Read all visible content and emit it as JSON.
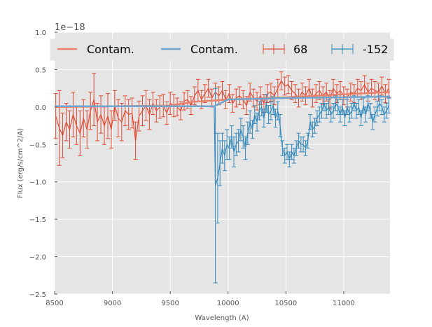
{
  "chart_data": {
    "type": "line",
    "title": "",
    "xlabel": "Wavelength (A)",
    "ylabel": "Flux (erg/s/cm^2/A)",
    "y_offset_label": "1e−18",
    "xlim": [
      8500,
      11400
    ],
    "ylim": [
      -2.5,
      1.0
    ],
    "xticks": [
      8500,
      9000,
      9500,
      10000,
      10500,
      11000
    ],
    "xtick_labels": [
      "8500",
      "9000",
      "9500",
      "10000",
      "10500",
      "11000"
    ],
    "yticks": [
      -2.5,
      -2.0,
      -1.5,
      -1.0,
      -0.5,
      0.0,
      0.5,
      1.0
    ],
    "ytick_labels": [
      "−2.5",
      "−2.0",
      "−1.5",
      "−1.0",
      "−0.5",
      "0.0",
      "0.5",
      "1.0"
    ],
    "grid": true,
    "legend_position": "top",
    "legend_ncol": 4,
    "series": [
      {
        "name": "Contam.",
        "kind": "line",
        "color": "#E8806A",
        "x": [
          8500,
          9000,
          9500,
          9700,
          10000,
          10500,
          11000,
          11400
        ],
        "y": [
          0.0,
          0.01,
          0.02,
          0.07,
          0.1,
          0.13,
          0.17,
          0.2
        ]
      },
      {
        "name": "Contam.",
        "kind": "line",
        "color": "#6FA6CF",
        "x": [
          8500,
          9000,
          9500,
          9880,
          10000,
          10500,
          11000,
          11400
        ],
        "y": [
          0.01,
          0.01,
          0.01,
          0.01,
          0.1,
          0.12,
          0.13,
          0.14
        ]
      },
      {
        "name": "68",
        "kind": "errorbar",
        "color": "#E24A33",
        "x": [
          8510,
          8540,
          8570,
          8600,
          8630,
          8660,
          8690,
          8720,
          8750,
          8780,
          8810,
          8840,
          8870,
          8900,
          8930,
          8960,
          8990,
          9020,
          9050,
          9080,
          9110,
          9140,
          9170,
          9200,
          9230,
          9260,
          9290,
          9320,
          9350,
          9380,
          9410,
          9440,
          9470,
          9500,
          9530,
          9560,
          9590,
          9620,
          9650,
          9680,
          9710,
          9740,
          9770,
          9800,
          9830,
          9860,
          9890,
          9920,
          9950,
          9980,
          10010,
          10040,
          10070,
          10100,
          10130,
          10160,
          10190,
          10220,
          10250,
          10280,
          10310,
          10340,
          10370,
          10400,
          10430,
          10460,
          10490,
          10520,
          10550,
          10580,
          10610,
          10640,
          10670,
          10700,
          10730,
          10760,
          10790,
          10820,
          10850,
          10880,
          10910,
          10940,
          10970,
          11000,
          11030,
          11060,
          11090,
          11120,
          11150,
          11180,
          11210,
          11240,
          11270,
          11300,
          11330,
          11360,
          11390
        ],
        "y": [
          -0.12,
          -0.28,
          -0.38,
          -0.2,
          -0.3,
          -0.1,
          -0.25,
          -0.35,
          -0.15,
          -0.3,
          -0.05,
          0.1,
          -0.2,
          -0.1,
          -0.25,
          -0.12,
          -0.3,
          0.02,
          -0.15,
          -0.2,
          -0.05,
          -0.1,
          -0.08,
          -0.45,
          -0.12,
          -0.05,
          0.02,
          -0.1,
          0.05,
          -0.05,
          0.0,
          0.02,
          -0.08,
          0.05,
          0.02,
          0.0,
          -0.05,
          0.08,
          0.1,
          0.02,
          0.15,
          0.22,
          0.1,
          0.18,
          0.25,
          0.12,
          0.2,
          0.15,
          0.22,
          0.1,
          0.18,
          0.05,
          0.12,
          0.15,
          0.1,
          0.02,
          0.2,
          0.12,
          0.08,
          0.15,
          0.05,
          0.18,
          0.2,
          0.15,
          0.25,
          0.35,
          0.28,
          0.3,
          0.22,
          0.18,
          0.12,
          0.2,
          0.15,
          0.25,
          0.12,
          0.18,
          0.22,
          0.15,
          0.2,
          0.1,
          0.25,
          0.18,
          0.22,
          0.15,
          0.12,
          0.2,
          0.18,
          0.25,
          0.22,
          0.3,
          0.2,
          0.25,
          0.22,
          0.2,
          0.28,
          0.18,
          0.25
        ],
        "yerr": [
          0.3,
          0.5,
          0.3,
          0.25,
          0.25,
          0.3,
          0.25,
          0.3,
          0.25,
          0.25,
          0.25,
          0.35,
          0.25,
          0.25,
          0.25,
          0.3,
          0.25,
          0.2,
          0.25,
          0.25,
          0.2,
          0.2,
          0.2,
          0.25,
          0.2,
          0.2,
          0.2,
          0.2,
          0.15,
          0.15,
          0.15,
          0.15,
          0.15,
          0.15,
          0.15,
          0.12,
          0.12,
          0.12,
          0.12,
          0.12,
          0.12,
          0.15,
          0.12,
          0.12,
          0.12,
          0.12,
          0.12,
          0.12,
          0.12,
          0.12,
          0.12,
          0.12,
          0.12,
          0.12,
          0.12,
          0.12,
          0.12,
          0.12,
          0.12,
          0.12,
          0.12,
          0.12,
          0.12,
          0.12,
          0.12,
          0.12,
          0.12,
          0.12,
          0.12,
          0.12,
          0.12,
          0.12,
          0.12,
          0.12,
          0.12,
          0.12,
          0.12,
          0.12,
          0.12,
          0.12,
          0.12,
          0.12,
          0.12,
          0.12,
          0.12,
          0.12,
          0.12,
          0.12,
          0.12,
          0.12,
          0.12,
          0.12,
          0.12,
          0.12,
          0.12,
          0.12,
          0.12
        ]
      },
      {
        "name": "-152",
        "kind": "errorbar",
        "color": "#348ABD",
        "x": [
          9890,
          9910,
          9930,
          9950,
          9970,
          9990,
          10010,
          10030,
          10050,
          10070,
          10090,
          10110,
          10130,
          10150,
          10170,
          10190,
          10210,
          10230,
          10250,
          10270,
          10290,
          10310,
          10330,
          10350,
          10370,
          10390,
          10410,
          10430,
          10450,
          10470,
          10490,
          10510,
          10530,
          10550,
          10570,
          10590,
          10610,
          10630,
          10650,
          10670,
          10690,
          10710,
          10730,
          10750,
          10770,
          10790,
          10810,
          10830,
          10850,
          10870,
          10890,
          10910,
          10930,
          10950,
          10970,
          10990,
          11010,
          11030,
          11050,
          11070,
          11090,
          11110,
          11130,
          11150,
          11170,
          11190,
          11210,
          11230,
          11250,
          11270,
          11290,
          11310,
          11330,
          11350,
          11370,
          11390
        ],
        "y": [
          -1.05,
          -0.95,
          -0.75,
          -0.55,
          -0.65,
          -0.5,
          -0.55,
          -0.4,
          -0.6,
          -0.5,
          -0.45,
          -0.3,
          -0.4,
          -0.55,
          -0.35,
          -0.2,
          -0.3,
          -0.1,
          -0.2,
          -0.05,
          0.0,
          -0.15,
          0.05,
          -0.1,
          -0.05,
          0.02,
          -0.15,
          -0.05,
          -0.25,
          -0.55,
          -0.65,
          -0.6,
          -0.7,
          -0.6,
          -0.65,
          -0.55,
          -0.45,
          -0.5,
          -0.5,
          -0.55,
          -0.45,
          -0.2,
          -0.3,
          -0.25,
          -0.15,
          -0.1,
          -0.05,
          0.05,
          -0.05,
          0.0,
          -0.1,
          -0.05,
          0.05,
          0.0,
          -0.1,
          0.0,
          -0.15,
          0.0,
          -0.1,
          -0.05,
          0.05,
          -0.05,
          0.0,
          -0.15,
          0.02,
          -0.1,
          0.05,
          -0.05,
          -0.2,
          -0.1,
          -0.02,
          0.05,
          0.0,
          -0.1,
          -0.05,
          0.02
        ],
        "yerr": [
          1.3,
          0.6,
          0.3,
          0.2,
          0.2,
          0.2,
          0.15,
          0.15,
          0.2,
          0.15,
          0.15,
          0.15,
          0.15,
          0.15,
          0.15,
          0.15,
          0.12,
          0.12,
          0.12,
          0.12,
          0.12,
          0.12,
          0.12,
          0.12,
          0.12,
          0.12,
          0.12,
          0.12,
          0.15,
          0.1,
          0.1,
          0.1,
          0.1,
          0.1,
          0.1,
          0.1,
          0.1,
          0.1,
          0.1,
          0.1,
          0.1,
          0.1,
          0.1,
          0.1,
          0.1,
          0.1,
          0.1,
          0.1,
          0.1,
          0.1,
          0.1,
          0.1,
          0.1,
          0.1,
          0.1,
          0.1,
          0.1,
          0.1,
          0.1,
          0.1,
          0.1,
          0.1,
          0.1,
          0.1,
          0.1,
          0.1,
          0.1,
          0.1,
          0.1,
          0.1,
          0.1,
          0.1,
          0.1,
          0.1,
          0.1,
          0.1
        ]
      }
    ]
  }
}
